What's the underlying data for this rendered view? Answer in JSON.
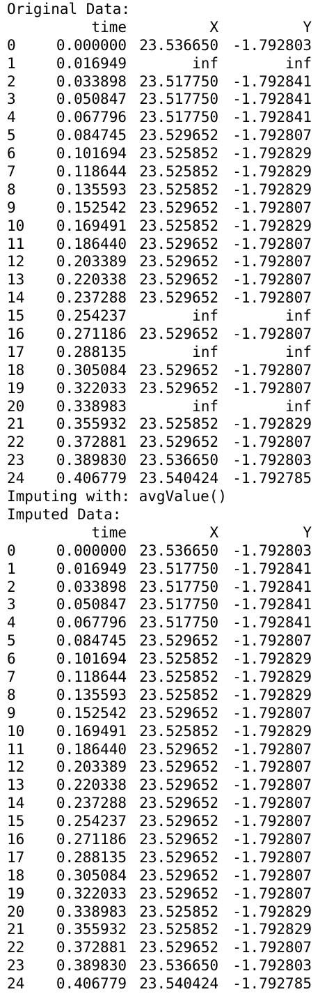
{
  "header_original": "Original Data:",
  "imputing_line": "Imputing with: avgValue()",
  "header_imputed": "Imputed Data:",
  "columns": [
    "time",
    "X",
    "Y"
  ],
  "original_rows": [
    [
      "0",
      "0.000000",
      "23.536650",
      "-1.792803"
    ],
    [
      "1",
      "0.016949",
      "inf",
      "inf"
    ],
    [
      "2",
      "0.033898",
      "23.517750",
      "-1.792841"
    ],
    [
      "3",
      "0.050847",
      "23.517750",
      "-1.792841"
    ],
    [
      "4",
      "0.067796",
      "23.517750",
      "-1.792841"
    ],
    [
      "5",
      "0.084745",
      "23.529652",
      "-1.792807"
    ],
    [
      "6",
      "0.101694",
      "23.525852",
      "-1.792829"
    ],
    [
      "7",
      "0.118644",
      "23.525852",
      "-1.792829"
    ],
    [
      "8",
      "0.135593",
      "23.525852",
      "-1.792829"
    ],
    [
      "9",
      "0.152542",
      "23.529652",
      "-1.792807"
    ],
    [
      "10",
      "0.169491",
      "23.525852",
      "-1.792829"
    ],
    [
      "11",
      "0.186440",
      "23.529652",
      "-1.792807"
    ],
    [
      "12",
      "0.203389",
      "23.529652",
      "-1.792807"
    ],
    [
      "13",
      "0.220338",
      "23.529652",
      "-1.792807"
    ],
    [
      "14",
      "0.237288",
      "23.529652",
      "-1.792807"
    ],
    [
      "15",
      "0.254237",
      "inf",
      "inf"
    ],
    [
      "16",
      "0.271186",
      "23.529652",
      "-1.792807"
    ],
    [
      "17",
      "0.288135",
      "inf",
      "inf"
    ],
    [
      "18",
      "0.305084",
      "23.529652",
      "-1.792807"
    ],
    [
      "19",
      "0.322033",
      "23.529652",
      "-1.792807"
    ],
    [
      "20",
      "0.338983",
      "inf",
      "inf"
    ],
    [
      "21",
      "0.355932",
      "23.525852",
      "-1.792829"
    ],
    [
      "22",
      "0.372881",
      "23.529652",
      "-1.792807"
    ],
    [
      "23",
      "0.389830",
      "23.536650",
      "-1.792803"
    ],
    [
      "24",
      "0.406779",
      "23.540424",
      "-1.792785"
    ]
  ],
  "imputed_rows": [
    [
      "0",
      "0.000000",
      "23.536650",
      "-1.792803"
    ],
    [
      "1",
      "0.016949",
      "23.517750",
      "-1.792841"
    ],
    [
      "2",
      "0.033898",
      "23.517750",
      "-1.792841"
    ],
    [
      "3",
      "0.050847",
      "23.517750",
      "-1.792841"
    ],
    [
      "4",
      "0.067796",
      "23.517750",
      "-1.792841"
    ],
    [
      "5",
      "0.084745",
      "23.529652",
      "-1.792807"
    ],
    [
      "6",
      "0.101694",
      "23.525852",
      "-1.792829"
    ],
    [
      "7",
      "0.118644",
      "23.525852",
      "-1.792829"
    ],
    [
      "8",
      "0.135593",
      "23.525852",
      "-1.792829"
    ],
    [
      "9",
      "0.152542",
      "23.529652",
      "-1.792807"
    ],
    [
      "10",
      "0.169491",
      "23.525852",
      "-1.792829"
    ],
    [
      "11",
      "0.186440",
      "23.529652",
      "-1.792807"
    ],
    [
      "12",
      "0.203389",
      "23.529652",
      "-1.792807"
    ],
    [
      "13",
      "0.220338",
      "23.529652",
      "-1.792807"
    ],
    [
      "14",
      "0.237288",
      "23.529652",
      "-1.792807"
    ],
    [
      "15",
      "0.254237",
      "23.529652",
      "-1.792807"
    ],
    [
      "16",
      "0.271186",
      "23.529652",
      "-1.792807"
    ],
    [
      "17",
      "0.288135",
      "23.529652",
      "-1.792807"
    ],
    [
      "18",
      "0.305084",
      "23.529652",
      "-1.792807"
    ],
    [
      "19",
      "0.322033",
      "23.529652",
      "-1.792807"
    ],
    [
      "20",
      "0.338983",
      "23.525852",
      "-1.792829"
    ],
    [
      "21",
      "0.355932",
      "23.525852",
      "-1.792829"
    ],
    [
      "22",
      "0.372881",
      "23.529652",
      "-1.792807"
    ],
    [
      "23",
      "0.389830",
      "23.536650",
      "-1.792803"
    ],
    [
      "24",
      "0.406779",
      "23.540424",
      "-1.792785"
    ]
  ]
}
